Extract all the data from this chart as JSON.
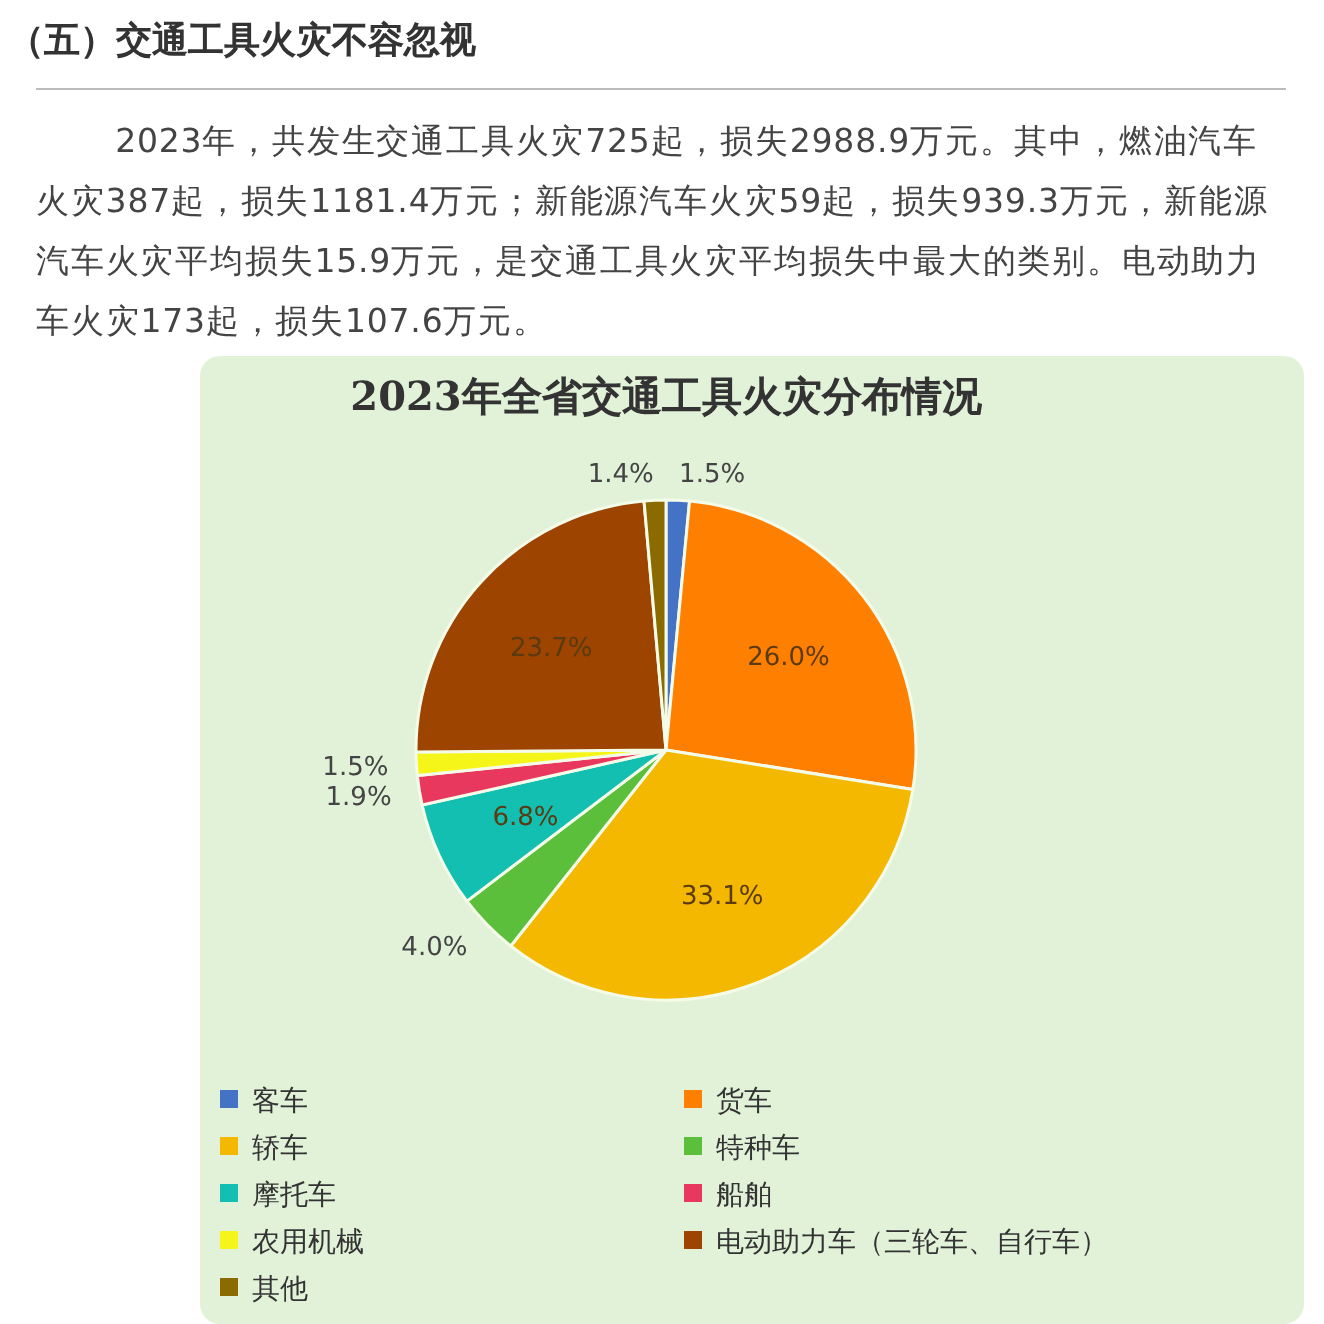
{
  "chart_data": {
    "type": "pie",
    "title": "2023年全省交通工具火灾分布情况",
    "annotations": [
      "（五）交通工具火灾不容忽视",
      "2023年，共发生交通工具火灾725起，损失2988.9万元。其中，燃油汽车火灾387起，损失1181.4万元；新能源汽车火灾59起，损失939.3万元，新能源汽车火灾平均损失15.9万元，是交通工具火灾平均损失中最大的类别。电动助力车火灾173起，损失107.6万元。"
    ],
    "categories": [
      "客车",
      "货车",
      "轿车",
      "特种车",
      "摩托车",
      "船舶",
      "农用机械",
      "电动助力车（三轮车、自行车）",
      "其他"
    ],
    "values": [
      1.5,
      26.0,
      33.1,
      4.0,
      6.8,
      1.9,
      1.5,
      23.7,
      1.4
    ],
    "value_labels": [
      "1.5%",
      "26.0%",
      "33.1%",
      "4.0%",
      "6.8%",
      "1.9%",
      "1.5%",
      "23.7%",
      "1.4%"
    ],
    "colors": [
      "#4472c4",
      "#ff7f00",
      "#f5b800",
      "#5cbf3c",
      "#12bfb0",
      "#e8385e",
      "#f5f51a",
      "#9c4400",
      "#8b6a00"
    ],
    "legend": "bottom"
  }
}
